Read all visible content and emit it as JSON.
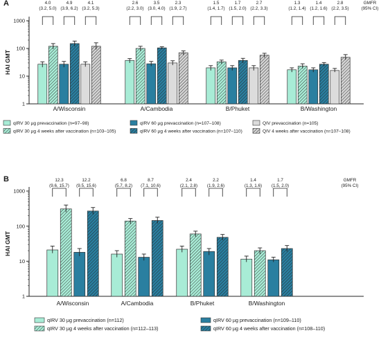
{
  "chart_data": [
    {
      "type": "bar",
      "panel_label": "A",
      "ylabel": "HAI GMT",
      "yscale": "log",
      "ylim": [
        1,
        1000
      ],
      "yticks": [
        "1",
        "10",
        "100",
        "1000"
      ],
      "categories": [
        "A/Wisconsin",
        "A/Cambodia",
        "B/Phuket",
        "B/Washington"
      ],
      "series": [
        {
          "name": "qIRV 30 µg prevaccination (n=97–98)",
          "color": "#a8ecd6",
          "hatch": false,
          "values": [
            27,
            37,
            20,
            17
          ],
          "err_low": [
            21,
            30,
            16,
            14
          ],
          "err_high": [
            33,
            43,
            24,
            20
          ]
        },
        {
          "name": "qIRV 30 µg 4 weeks after vaccination (n=103–105)",
          "color": "#a8ecd6",
          "hatch": true,
          "values": [
            120,
            100,
            33,
            23
          ],
          "err_low": [
            95,
            82,
            28,
            19
          ],
          "err_high": [
            150,
            120,
            38,
            28
          ]
        },
        {
          "name": "qIRV 60 µg prevaccination (n=107–108)",
          "color": "#2a7fa0",
          "hatch": false,
          "values": [
            27,
            28,
            20,
            17
          ],
          "err_low": [
            21,
            23,
            16,
            14
          ],
          "err_high": [
            34,
            34,
            24,
            20
          ]
        },
        {
          "name": "qIRV 60 µg 4 weeks after vaccination (n=107–110)",
          "color": "#2a7fa0",
          "hatch": true,
          "values": [
            150,
            105,
            37,
            27
          ],
          "err_low": [
            120,
            95,
            30,
            23
          ],
          "err_high": [
            185,
            115,
            44,
            31
          ]
        },
        {
          "name": "QIV prevaccination (n=105)",
          "color": "#dcdcdc",
          "hatch": false,
          "values": [
            27,
            30,
            20,
            16
          ],
          "err_low": [
            22,
            25,
            16,
            14
          ],
          "err_high": [
            33,
            36,
            24,
            19
          ]
        },
        {
          "name": "QIV 4 weeks after vaccination (n=107–108)",
          "color": "#d4d4d4",
          "hatch": true,
          "values": [
            120,
            70,
            57,
            48
          ],
          "err_low": [
            92,
            58,
            47,
            39
          ],
          "err_high": [
            160,
            82,
            67,
            60
          ]
        }
      ],
      "gmfr_header": "GMFR\n(95% CI)",
      "gmfr": [
        {
          "category": "A/Wisconsin",
          "pair": "qIRV 30 µg",
          "value": "4.0",
          "ci": "(3.2, 5.0)"
        },
        {
          "category": "A/Wisconsin",
          "pair": "qIRV 60 µg",
          "value": "4.9",
          "ci": "(3.9, 6.2)"
        },
        {
          "category": "A/Wisconsin",
          "pair": "QIV",
          "value": "4.1",
          "ci": "(3.2, 5.3)"
        },
        {
          "category": "A/Cambodia",
          "pair": "qIRV 30 µg",
          "value": "2.6",
          "ci": "(2.2, 3.0)"
        },
        {
          "category": "A/Cambodia",
          "pair": "qIRV 60 µg",
          "value": "3.5",
          "ci": "(3.0, 4.0)"
        },
        {
          "category": "A/Cambodia",
          "pair": "QIV",
          "value": "2.3",
          "ci": "(1.9, 2.7)"
        },
        {
          "category": "B/Phuket",
          "pair": "qIRV 30 µg",
          "value": "1.5",
          "ci": "(1.4, 1.7)"
        },
        {
          "category": "B/Phuket",
          "pair": "qIRV 60 µg",
          "value": "1.7",
          "ci": "(1.5, 2.0)"
        },
        {
          "category": "B/Phuket",
          "pair": "QIV",
          "value": "2.7",
          "ci": "(2.2, 3.3)"
        },
        {
          "category": "B/Washington",
          "pair": "qIRV 30 µg",
          "value": "1.3",
          "ci": "(1.2, 1.4)"
        },
        {
          "category": "B/Washington",
          "pair": "qIRV 60 µg",
          "value": "1.4",
          "ci": "(1.2, 1.6)"
        },
        {
          "category": "B/Washington",
          "pair": "QIV",
          "value": "2.8",
          "ci": "(2.2, 3.5)"
        }
      ]
    },
    {
      "type": "bar",
      "panel_label": "B",
      "ylabel": "HAI GMT",
      "yscale": "log",
      "ylim": [
        1,
        1000
      ],
      "yticks": [
        "1",
        "10",
        "100",
        "1000"
      ],
      "categories": [
        "A/Wisconsin",
        "A/Cambodia",
        "B/Phuket",
        "B/Washington"
      ],
      "series": [
        {
          "name": "qIRV 30 µg prevaccination (n=112)",
          "color": "#a8ecd6",
          "hatch": false,
          "values": [
            21,
            16,
            22,
            11.5
          ],
          "err_low": [
            17,
            13,
            18,
            9.5
          ],
          "err_high": [
            27,
            20,
            27,
            14
          ]
        },
        {
          "name": "qIRV 30 µg 4 weeks after vaccination (n=112–113)",
          "color": "#a8ecd6",
          "hatch": true,
          "values": [
            310,
            140,
            60,
            20
          ],
          "err_low": [
            250,
            115,
            50,
            16
          ],
          "err_high": [
            400,
            165,
            72,
            24
          ]
        },
        {
          "name": "qIRV 60 µg prevaccination (n=109–110)",
          "color": "#2a7fa0",
          "hatch": false,
          "values": [
            18,
            13,
            19,
            11
          ],
          "err_low": [
            14,
            10.5,
            15,
            9.5
          ],
          "err_high": [
            23,
            16,
            23,
            13
          ]
        },
        {
          "name": "qIRV 60 µg 4 weeks after vaccination (n=108–110)",
          "color": "#2a7fa0",
          "hatch": true,
          "values": [
            270,
            145,
            48,
            23
          ],
          "err_low": [
            215,
            120,
            40,
            19
          ],
          "err_high": [
            340,
            180,
            58,
            28
          ]
        }
      ],
      "gmfr_header": "GMFR\n(95% CI)",
      "gmfr": [
        {
          "category": "A/Wisconsin",
          "pair": "qIRV 30 µg",
          "value": "12.3",
          "ci": "(9.6, 15.7)"
        },
        {
          "category": "A/Wisconsin",
          "pair": "qIRV 60 µg",
          "value": "12.2",
          "ci": "(9.5, 15.6)"
        },
        {
          "category": "A/Cambodia",
          "pair": "qIRV 30 µg",
          "value": "6.8",
          "ci": "(5.7, 8.2)"
        },
        {
          "category": "A/Cambodia",
          "pair": "qIRV 60 µg",
          "value": "8.7",
          "ci": "(7.1, 10.6)"
        },
        {
          "category": "B/Phuket",
          "pair": "qIRV 30 µg",
          "value": "2.4",
          "ci": "(2.1, 2.8)"
        },
        {
          "category": "B/Phuket",
          "pair": "qIRV 60 µg",
          "value": "2.2",
          "ci": "(1.9, 2.6)"
        },
        {
          "category": "B/Washington",
          "pair": "qIRV 30 µg",
          "value": "1.4",
          "ci": "(1.3, 1.6)"
        },
        {
          "category": "B/Washington",
          "pair": "qIRV 60 µg",
          "value": "1.7",
          "ci": "(1.5, 2.0)"
        }
      ]
    }
  ]
}
